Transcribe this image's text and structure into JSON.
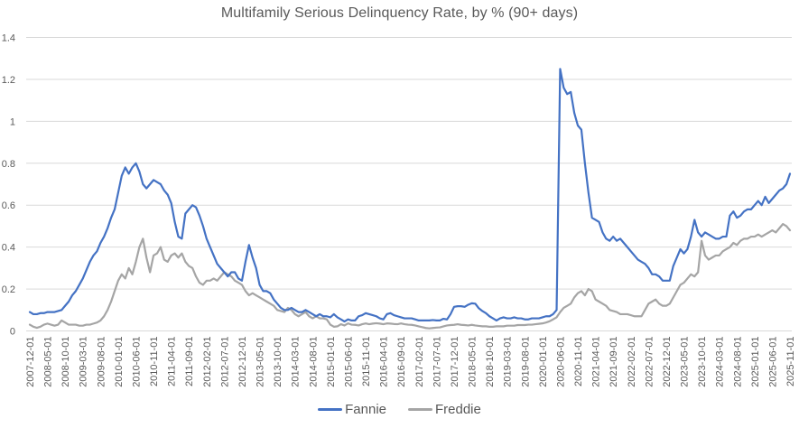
{
  "chart": {
    "title": "Multifamily Serious Delinquency Rate, by % (90+ days)",
    "legend": {
      "fannie_label": "Fannie",
      "freddie_label": "Freddie"
    },
    "colors": {
      "fannie": "#4472C4",
      "freddie": "#A5A5A5",
      "gridline": "#D9D9D9",
      "axis_text": "#595959",
      "title_text": "#595959",
      "background": "#FFFFFF"
    }
  },
  "chart_data": {
    "type": "line",
    "title": "Multifamily Serious Delinquency Rate, by % (90+ days)",
    "xlabel": "",
    "ylabel": "",
    "x_start": "2007-12-01",
    "x_end": "2025-11-01",
    "x_frequency": "monthly",
    "x_tick_every_n_months": 5,
    "x_tick_labels": [
      "2007-12-01",
      "2008-05-01",
      "2008-10-01",
      "2009-03-01",
      "2009-08-01",
      "2010-01-01",
      "2010-06-01",
      "2010-11-01",
      "2011-04-01",
      "2011-09-01",
      "2012-02-01",
      "2012-07-01",
      "2012-12-01",
      "2013-05-01",
      "2013-10-01",
      "2014-03-01",
      "2014-08-01",
      "2015-01-01",
      "2015-06-01",
      "2015-11-01",
      "2016-04-01",
      "2016-09-01",
      "2017-02-01",
      "2017-07-01",
      "2017-12-01",
      "2018-05-01",
      "2018-10-01",
      "2019-03-01",
      "2019-08-01",
      "2020-01-01",
      "2020-06-01",
      "2020-11-01",
      "2021-04-01",
      "2021-09-01",
      "2022-02-01",
      "2022-07-01",
      "2022-12-01",
      "2023-05-01",
      "2023-10-01",
      "2024-03-01",
      "2024-08-01",
      "2025-01-01",
      "2025-06-01",
      "2025-11-01"
    ],
    "y_tick_labels": [
      "0",
      "0.2",
      "0.4",
      "0.6",
      "0.8",
      "1",
      "1.2",
      "1.4"
    ],
    "ylim": [
      0,
      1.4
    ],
    "grid": "horizontal",
    "legend_position": "bottom",
    "series": [
      {
        "name": "Fannie",
        "color": "#4472C4",
        "values": [
          0.09,
          0.08,
          0.08,
          0.085,
          0.085,
          0.09,
          0.09,
          0.09,
          0.095,
          0.1,
          0.12,
          0.14,
          0.17,
          0.19,
          0.22,
          0.25,
          0.29,
          0.33,
          0.36,
          0.38,
          0.42,
          0.45,
          0.49,
          0.54,
          0.58,
          0.66,
          0.74,
          0.78,
          0.75,
          0.78,
          0.8,
          0.76,
          0.7,
          0.68,
          0.7,
          0.72,
          0.71,
          0.7,
          0.67,
          0.65,
          0.61,
          0.52,
          0.45,
          0.44,
          0.56,
          0.58,
          0.6,
          0.59,
          0.55,
          0.5,
          0.44,
          0.4,
          0.36,
          0.32,
          0.3,
          0.28,
          0.26,
          0.28,
          0.28,
          0.25,
          0.24,
          0.33,
          0.41,
          0.35,
          0.3,
          0.22,
          0.19,
          0.19,
          0.18,
          0.15,
          0.13,
          0.11,
          0.1,
          0.1,
          0.11,
          0.1,
          0.09,
          0.09,
          0.1,
          0.09,
          0.08,
          0.07,
          0.08,
          0.07,
          0.07,
          0.065,
          0.08,
          0.065,
          0.055,
          0.045,
          0.055,
          0.05,
          0.05,
          0.07,
          0.075,
          0.085,
          0.08,
          0.075,
          0.07,
          0.06,
          0.055,
          0.08,
          0.085,
          0.075,
          0.07,
          0.065,
          0.06,
          0.06,
          0.06,
          0.055,
          0.05,
          0.05,
          0.05,
          0.05,
          0.052,
          0.05,
          0.05,
          0.058,
          0.055,
          0.08,
          0.115,
          0.118,
          0.118,
          0.115,
          0.125,
          0.132,
          0.13,
          0.108,
          0.095,
          0.085,
          0.07,
          0.06,
          0.05,
          0.06,
          0.065,
          0.06,
          0.06,
          0.065,
          0.06,
          0.06,
          0.055,
          0.055,
          0.06,
          0.06,
          0.06,
          0.065,
          0.07,
          0.07,
          0.08,
          0.1,
          1.25,
          1.16,
          1.13,
          1.14,
          1.04,
          0.98,
          0.96,
          0.8,
          0.66,
          0.54,
          0.53,
          0.52,
          0.47,
          0.44,
          0.43,
          0.45,
          0.43,
          0.44,
          0.42,
          0.4,
          0.38,
          0.36,
          0.34,
          0.33,
          0.32,
          0.3,
          0.27,
          0.27,
          0.26,
          0.24,
          0.24,
          0.24,
          0.31,
          0.35,
          0.39,
          0.37,
          0.39,
          0.45,
          0.53,
          0.47,
          0.45,
          0.47,
          0.46,
          0.45,
          0.44,
          0.44,
          0.45,
          0.45,
          0.55,
          0.57,
          0.54,
          0.55,
          0.57,
          0.58,
          0.58,
          0.6,
          0.62,
          0.6,
          0.64,
          0.61,
          0.63,
          0.65,
          0.67,
          0.68,
          0.7,
          0.75
        ]
      },
      {
        "name": "Freddie",
        "color": "#A5A5A5",
        "values": [
          0.03,
          0.02,
          0.015,
          0.02,
          0.03,
          0.035,
          0.03,
          0.025,
          0.03,
          0.05,
          0.04,
          0.03,
          0.03,
          0.03,
          0.025,
          0.025,
          0.03,
          0.03,
          0.035,
          0.04,
          0.05,
          0.07,
          0.1,
          0.14,
          0.19,
          0.24,
          0.27,
          0.25,
          0.3,
          0.27,
          0.33,
          0.4,
          0.44,
          0.35,
          0.28,
          0.36,
          0.37,
          0.4,
          0.34,
          0.33,
          0.36,
          0.37,
          0.35,
          0.37,
          0.33,
          0.31,
          0.3,
          0.26,
          0.23,
          0.22,
          0.24,
          0.24,
          0.25,
          0.24,
          0.26,
          0.28,
          0.27,
          0.26,
          0.24,
          0.23,
          0.22,
          0.19,
          0.17,
          0.18,
          0.17,
          0.16,
          0.15,
          0.14,
          0.13,
          0.12,
          0.1,
          0.095,
          0.09,
          0.11,
          0.1,
          0.08,
          0.07,
          0.08,
          0.09,
          0.07,
          0.06,
          0.07,
          0.06,
          0.06,
          0.055,
          0.03,
          0.02,
          0.022,
          0.032,
          0.026,
          0.036,
          0.03,
          0.029,
          0.026,
          0.032,
          0.036,
          0.032,
          0.035,
          0.037,
          0.035,
          0.032,
          0.036,
          0.035,
          0.033,
          0.032,
          0.036,
          0.032,
          0.03,
          0.029,
          0.026,
          0.022,
          0.018,
          0.014,
          0.012,
          0.014,
          0.016,
          0.017,
          0.022,
          0.026,
          0.028,
          0.029,
          0.032,
          0.029,
          0.028,
          0.026,
          0.029,
          0.026,
          0.024,
          0.022,
          0.022,
          0.02,
          0.02,
          0.022,
          0.022,
          0.022,
          0.025,
          0.025,
          0.025,
          0.028,
          0.028,
          0.028,
          0.03,
          0.03,
          0.032,
          0.034,
          0.036,
          0.04,
          0.046,
          0.055,
          0.065,
          0.09,
          0.11,
          0.12,
          0.13,
          0.16,
          0.18,
          0.19,
          0.17,
          0.2,
          0.19,
          0.15,
          0.14,
          0.13,
          0.12,
          0.1,
          0.095,
          0.09,
          0.08,
          0.08,
          0.08,
          0.075,
          0.07,
          0.07,
          0.07,
          0.1,
          0.13,
          0.14,
          0.15,
          0.13,
          0.12,
          0.12,
          0.13,
          0.16,
          0.19,
          0.22,
          0.23,
          0.25,
          0.27,
          0.26,
          0.28,
          0.43,
          0.36,
          0.34,
          0.35,
          0.36,
          0.36,
          0.38,
          0.39,
          0.4,
          0.42,
          0.41,
          0.43,
          0.44,
          0.44,
          0.45,
          0.45,
          0.46,
          0.45,
          0.46,
          0.47,
          0.48,
          0.47,
          0.49,
          0.51,
          0.5,
          0.48
        ]
      }
    ]
  }
}
